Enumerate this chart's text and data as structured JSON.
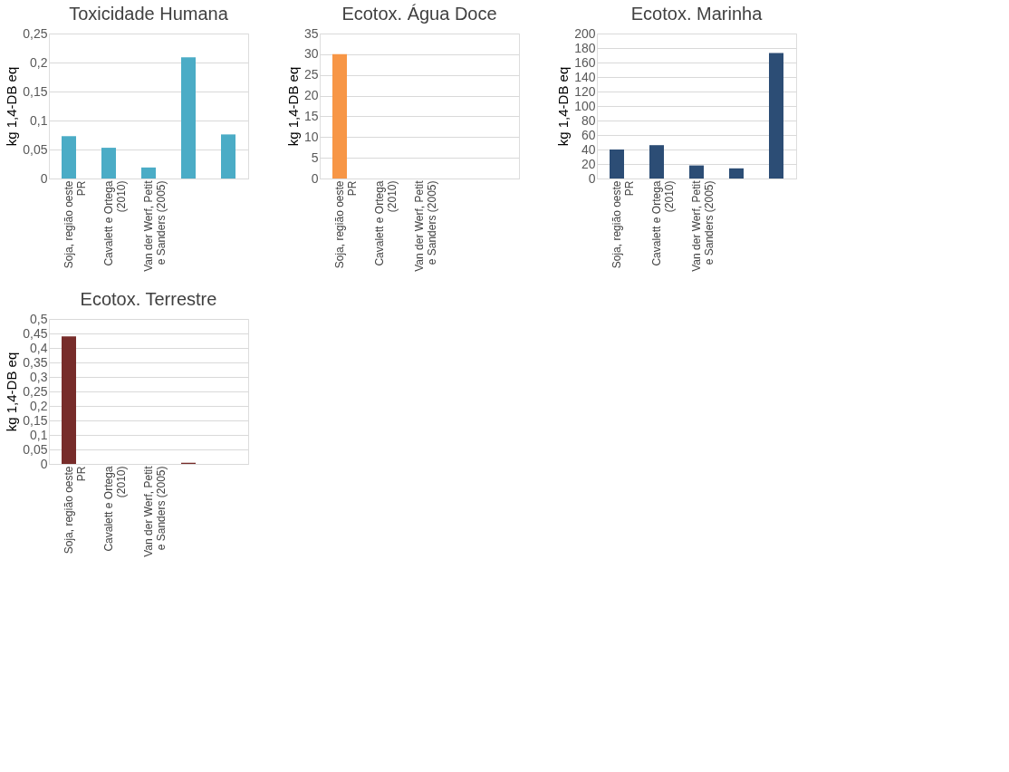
{
  "chart_data": [
    {
      "type": "bar",
      "title": "Toxicidade Humana",
      "ylabel": "kg 1,4-DB eq",
      "categories": [
        "Soja, região oeste PR",
        "Cavalett e Ortega (2010)",
        "Van der Werf, Petit e Sanders (2005)",
        null,
        null
      ],
      "series": [
        {
          "color": "#4bacc6",
          "values": [
            0.073,
            0.053,
            0.019,
            0.209,
            0.076
          ]
        }
      ],
      "ylim": [
        0,
        0.25
      ],
      "yticks": [
        0,
        {
          "value": 0.05,
          "label": "0,05"
        },
        {
          "value": 0.1,
          "label": "0,1"
        },
        {
          "value": 0.15,
          "label": "0,15"
        },
        {
          "value": 0.2,
          "label": "0,2"
        },
        {
          "value": 0.25,
          "label": "0,25"
        }
      ],
      "grid": "y",
      "legend": false
    },
    {
      "type": "bar",
      "title": "Ecotox. Água Doce",
      "ylabel": "kg 1,4-DB eq",
      "categories": [
        "Soja, região oeste PR",
        "Cavalett e Ortega (2010)",
        "Van der Werf, Petit e Sanders (2005)",
        null,
        null
      ],
      "series": [
        {
          "color": "#f79646",
          "values": [
            30,
            0,
            0,
            0,
            0
          ]
        }
      ],
      "ylim": [
        0,
        35
      ],
      "yticks": [
        0,
        5,
        10,
        15,
        20,
        25,
        30,
        35
      ],
      "grid": "y",
      "legend": false
    },
    {
      "type": "bar",
      "title": "Ecotox. Marinha",
      "ylabel": "kg 1,4-DB eq",
      "categories": [
        "Soja, região oeste PR",
        "Cavalett e Ortega (2010)",
        "Van der Werf, Petit e Sanders (2005)",
        null,
        null
      ],
      "series": [
        {
          "color": "#2c4d75",
          "values": [
            40,
            46,
            18,
            14,
            173
          ]
        }
      ],
      "ylim": [
        0,
        200
      ],
      "yticks": [
        0,
        20,
        40,
        60,
        80,
        100,
        120,
        140,
        160,
        180,
        200
      ],
      "grid": "y",
      "legend": false
    },
    {
      "type": "bar",
      "title": "Ecotox. Terrestre",
      "ylabel": "kg 1,4-DB eq",
      "categories": [
        "Soja, região oeste PR",
        "Cavalett e Ortega (2010)",
        "Van der Werf, Petit e Sanders (2005)",
        null,
        null
      ],
      "series": [
        {
          "color": "#772c2a",
          "values": [
            0.44,
            0,
            0,
            0.004,
            0
          ]
        }
      ],
      "ylim": [
        0,
        0.5
      ],
      "yticks": [
        0,
        {
          "value": 0.05,
          "label": "0,05"
        },
        {
          "value": 0.1,
          "label": "0,1"
        },
        {
          "value": 0.15,
          "label": "0,15"
        },
        {
          "value": 0.2,
          "label": "0,2"
        },
        {
          "value": 0.25,
          "label": "0,25"
        },
        {
          "value": 0.3,
          "label": "0,3"
        },
        {
          "value": 0.35,
          "label": "0,35"
        },
        {
          "value": 0.4,
          "label": "0,4"
        },
        {
          "value": 0.45,
          "label": "0,45"
        },
        {
          "value": 0.5,
          "label": "0,5"
        }
      ],
      "grid": "y",
      "legend": false
    }
  ]
}
